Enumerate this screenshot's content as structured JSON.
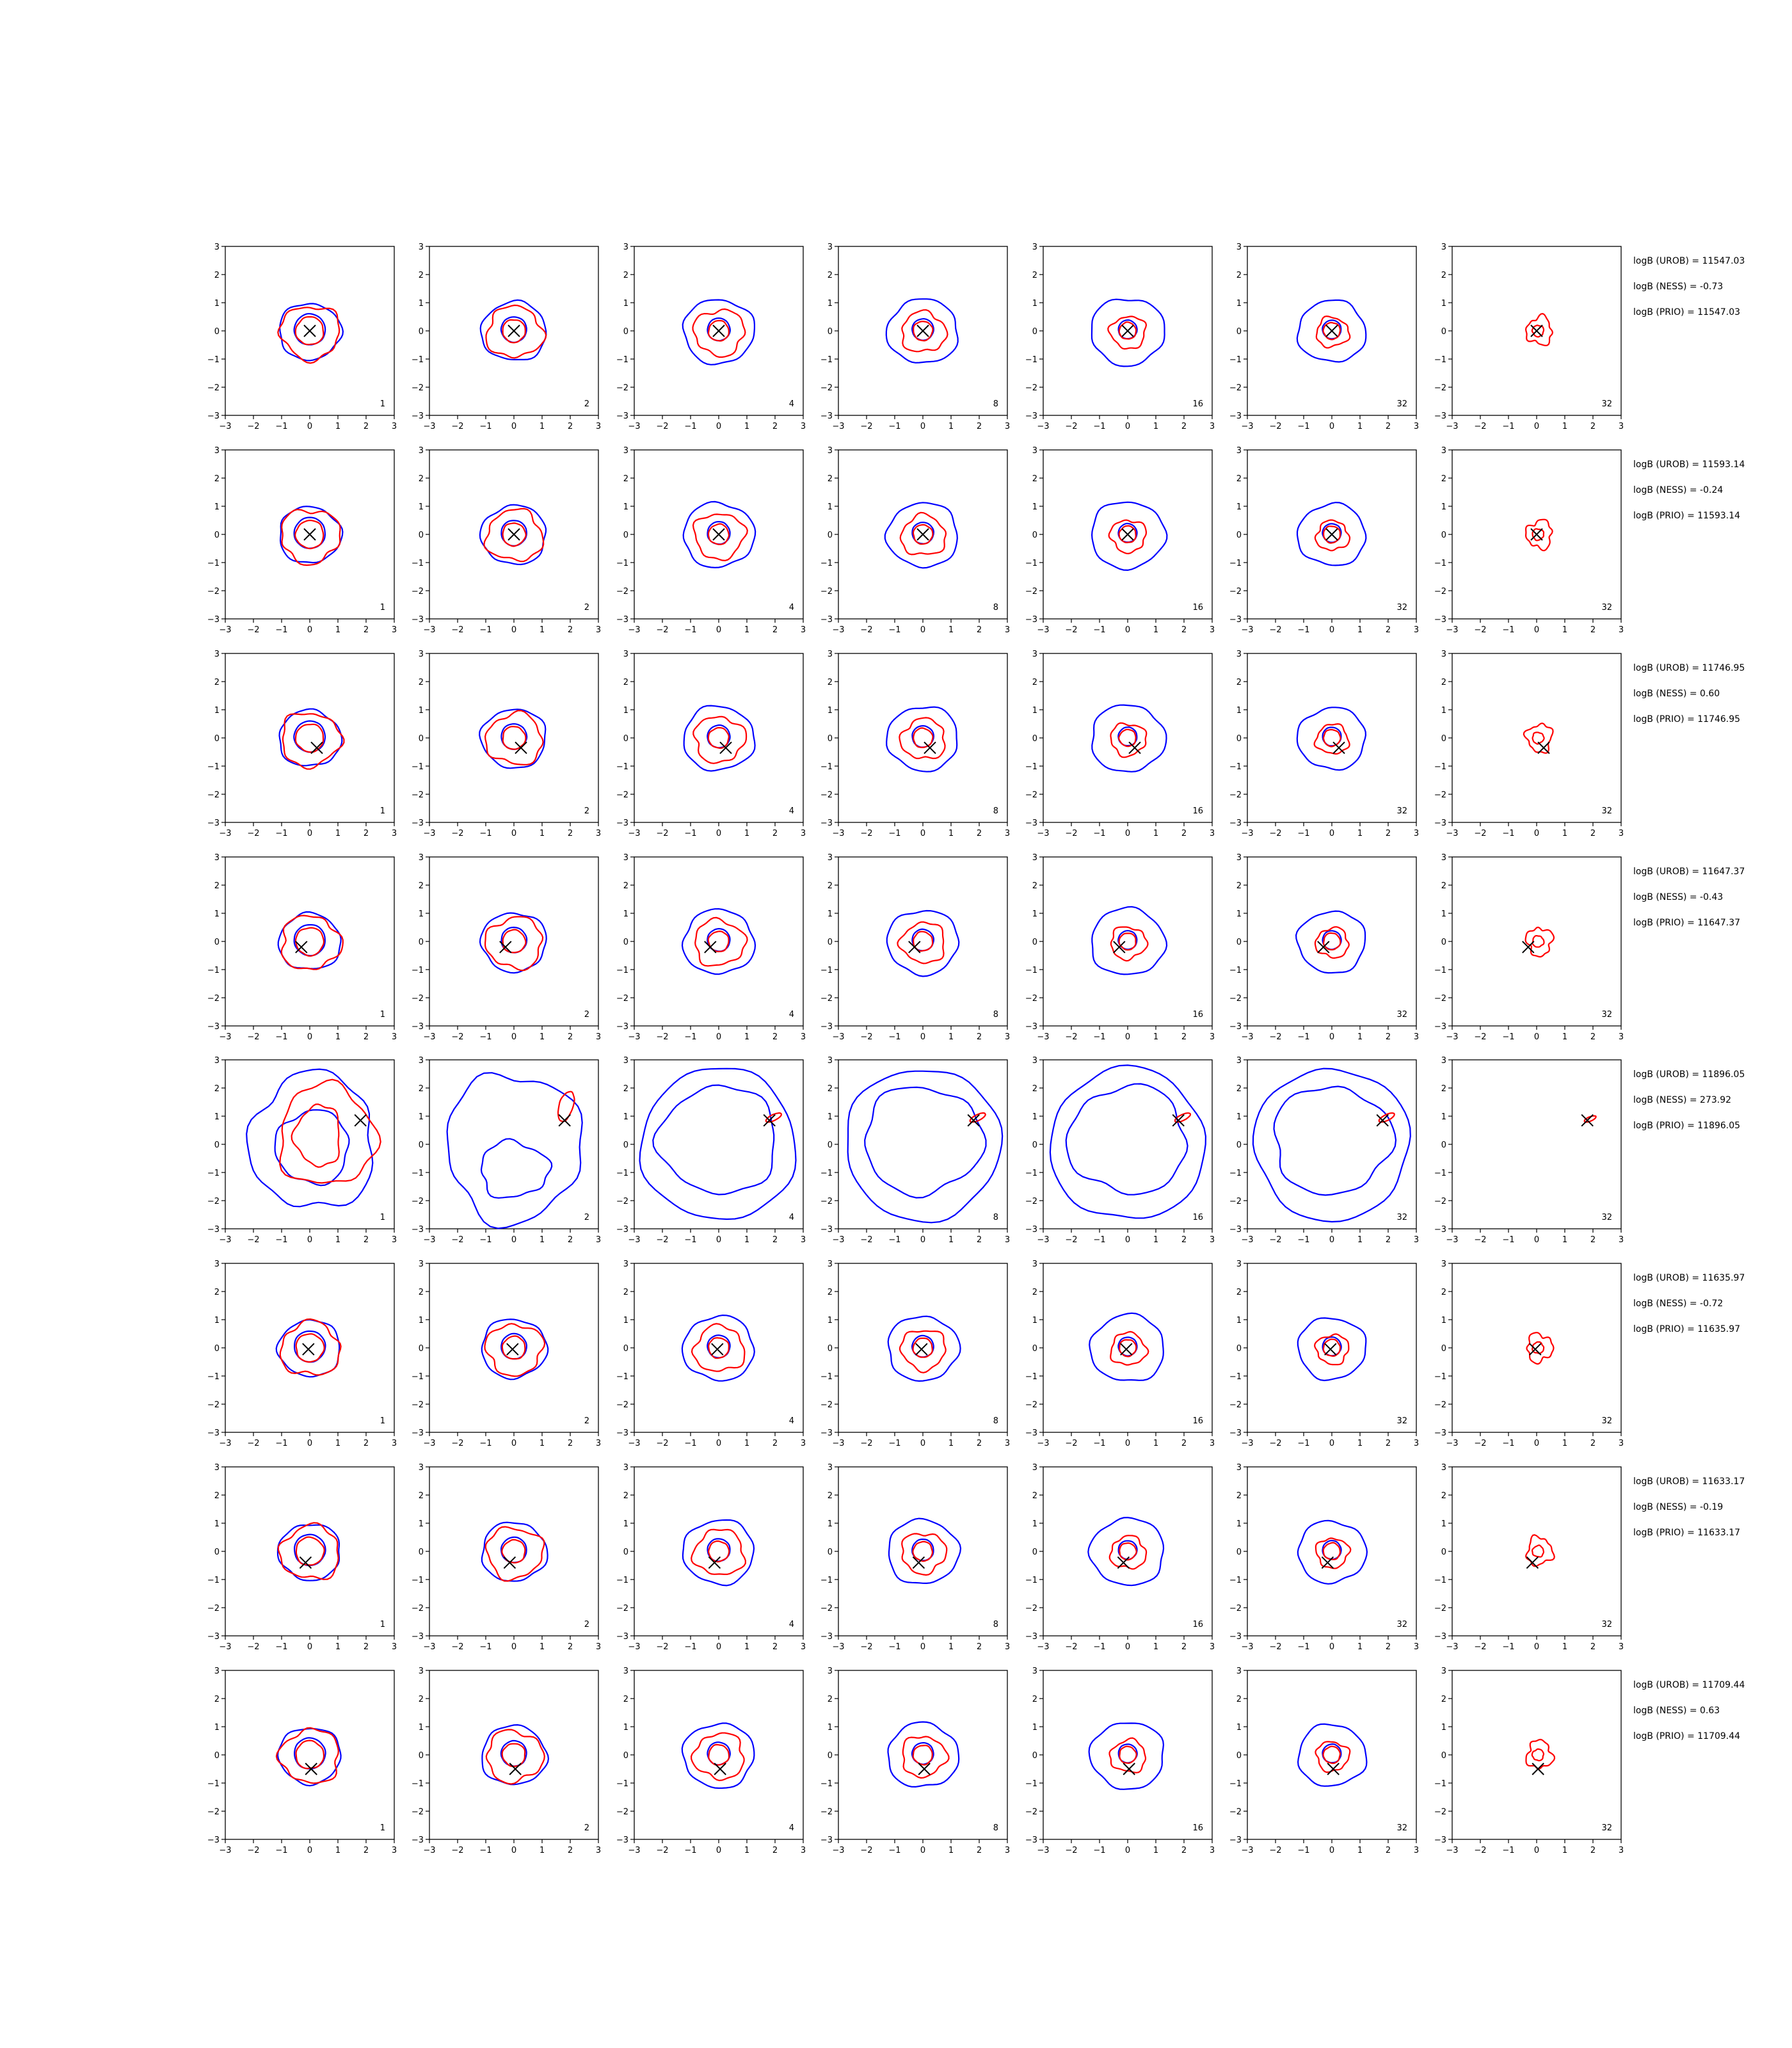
{
  "chart_data": {
    "type": "contour-grid",
    "rows": 8,
    "cols": 7,
    "xlim": [
      -3,
      3
    ],
    "ylim": [
      -3,
      3
    ],
    "ticks": [
      -3,
      -2,
      -1,
      0,
      1,
      2,
      3
    ],
    "tick_labels": [
      "−3",
      "−2",
      "−1",
      "0",
      "1",
      "2",
      "3"
    ],
    "panel_labels": [
      "1",
      "2",
      "4",
      "8",
      "16",
      "32",
      "32"
    ],
    "colors": {
      "blue": "#0000ff",
      "red": "#ff0000",
      "marker": "#000000"
    },
    "marker": "x",
    "rows_data": [
      {
        "x": [
          0,
          0
        ],
        "annotations": [
          "logB (UROB) = 11547.03",
          "logB (NESS) = -0.73",
          "logB (PRIO) = 11547.03"
        ]
      },
      {
        "x": [
          0,
          0
        ],
        "annotations": [
          "logB (UROB) = 11593.14",
          "logB (NESS) = -0.24",
          "logB (PRIO) = 11593.14"
        ]
      },
      {
        "x": [
          0.25,
          -0.35
        ],
        "annotations": [
          "logB (UROB) = 11746.95",
          "logB (NESS) = 0.60",
          "logB (PRIO) = 11746.95"
        ]
      },
      {
        "x": [
          -0.3,
          -0.2
        ],
        "annotations": [
          "logB (UROB) = 11647.37",
          "logB (NESS) = -0.43",
          "logB (PRIO) = 11647.37"
        ]
      },
      {
        "x": [
          1.8,
          0.85
        ],
        "annotations": [
          "logB (UROB) = 11896.05",
          "logB (NESS) = 273.92",
          "logB (PRIO) = 11896.05"
        ]
      },
      {
        "x": [
          -0.05,
          -0.05
        ],
        "annotations": [
          "logB (UROB) = 11635.97",
          "logB (NESS) = -0.72",
          "logB (PRIO) = 11635.97"
        ]
      },
      {
        "x": [
          -0.15,
          -0.4
        ],
        "annotations": [
          "logB (UROB) = 11633.17",
          "logB (NESS) = -0.19",
          "logB (PRIO) = 11633.17"
        ]
      },
      {
        "x": [
          0.05,
          -0.5
        ],
        "annotations": [
          "logB (UROB) = 11709.44",
          "logB (NESS) = 0.63",
          "logB (PRIO) = 11709.44"
        ]
      }
    ]
  }
}
